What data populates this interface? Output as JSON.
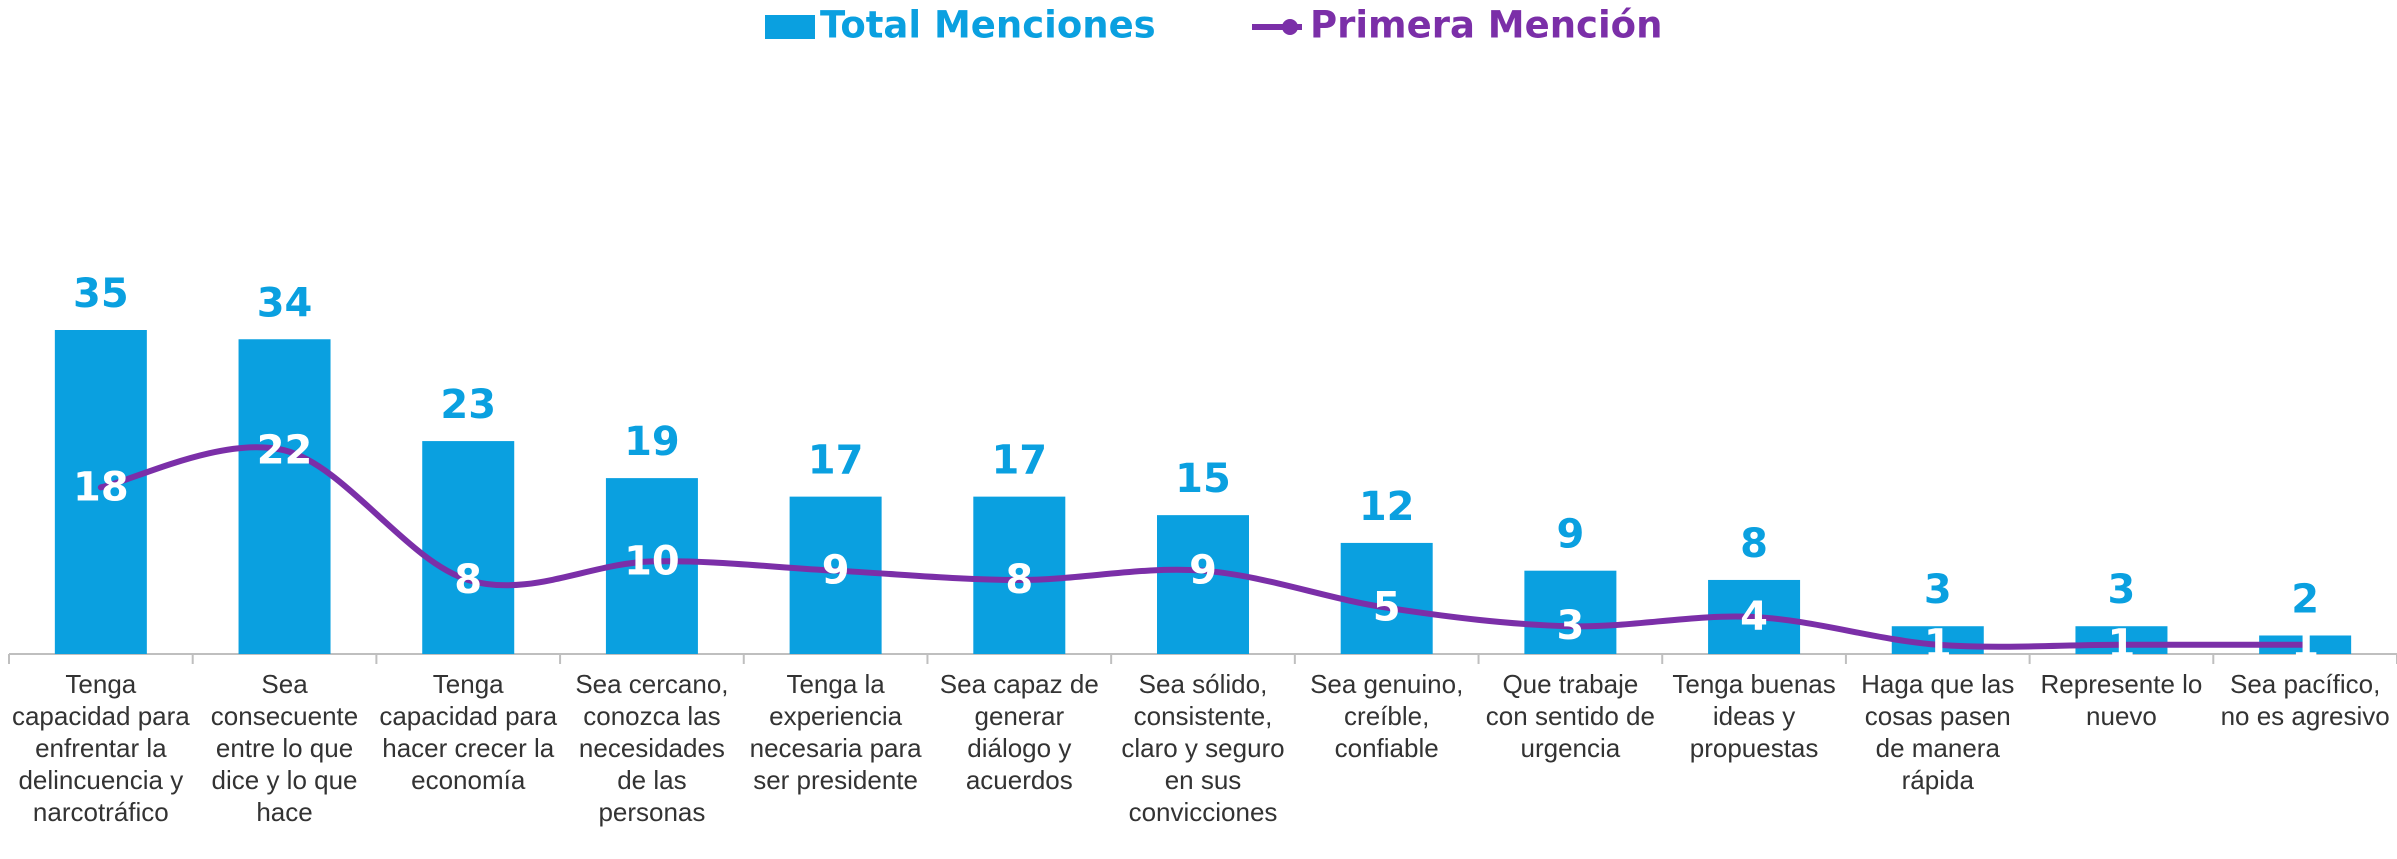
{
  "chart_data": {
    "type": "bar",
    "categories": [
      "Tenga capacidad para enfrentar la delincuencia y narcotráfico",
      "Sea consecuente entre lo que dice y lo que hace",
      "Tenga capacidad para hacer crecer la economía",
      "Sea cercano, conozca las necesidades de las personas",
      "Tenga la experiencia necesaria para ser presidente",
      "Sea capaz de generar diálogo y acuerdos",
      "Sea sólido, consistente, claro y seguro en sus convicciones",
      "Sea genuino, creíble, confiable",
      "Que trabaje con sentido de urgencia",
      "Tenga buenas ideas y propuestas",
      "Haga que las cosas pasen de manera rápida",
      "Represente lo nuevo",
      "Sea pacífico, no es agresivo"
    ],
    "series": [
      {
        "name": "Total Menciones",
        "type": "bar",
        "color": "#0aa0e0",
        "values": [
          35,
          34,
          23,
          19,
          17,
          17,
          15,
          12,
          9,
          8,
          3,
          3,
          2
        ]
      },
      {
        "name": "Primera Mención",
        "type": "line",
        "color": "#7b2fa8",
        "values": [
          18,
          22,
          8,
          10,
          9,
          8,
          9,
          5,
          3,
          4,
          1,
          1,
          1
        ]
      }
    ],
    "ylim": [
      0,
      70
    ],
    "legend": "top"
  }
}
